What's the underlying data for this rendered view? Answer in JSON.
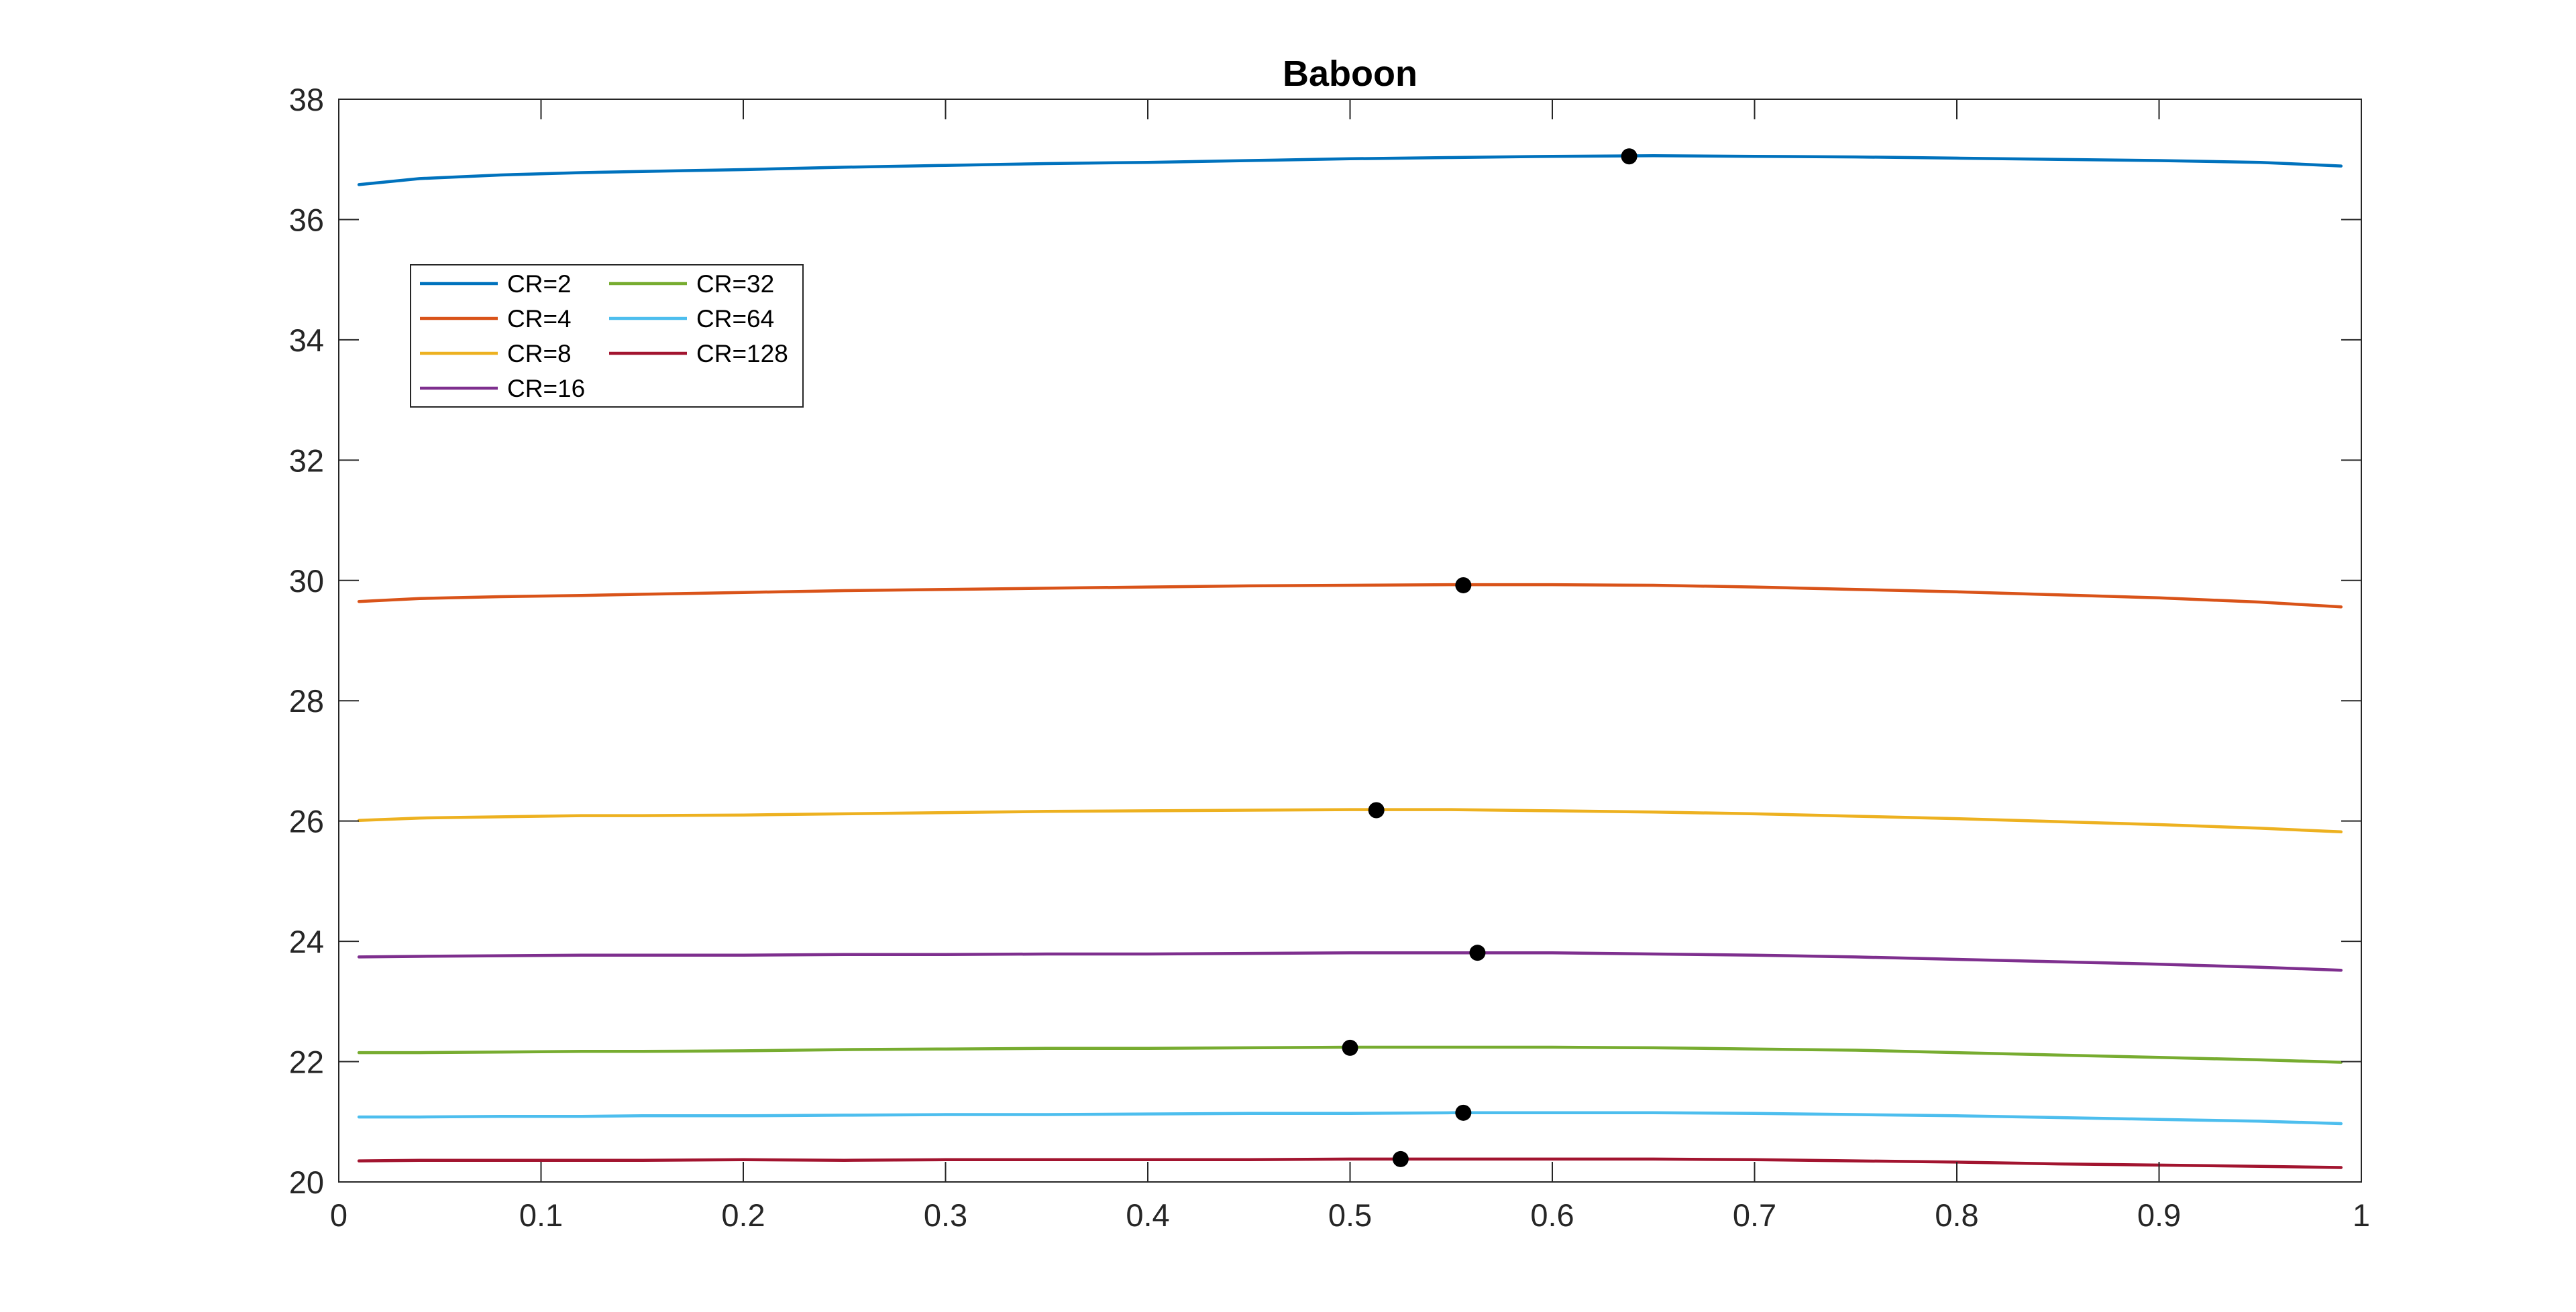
{
  "chart_data": {
    "type": "line",
    "title": "Baboon",
    "xlabel": "",
    "ylabel": "",
    "xlim": [
      0,
      1
    ],
    "ylim": [
      20,
      38
    ],
    "xticks": [
      "0",
      "0.1",
      "0.2",
      "0.3",
      "0.4",
      "0.5",
      "0.6",
      "0.7",
      "0.8",
      "0.9",
      "1"
    ],
    "yticks": [
      "20",
      "22",
      "24",
      "26",
      "28",
      "30",
      "32",
      "34",
      "36",
      "38"
    ],
    "grid": false,
    "legend_position": "upper-left",
    "legend_columns": 2,
    "x": [
      0.01,
      0.04,
      0.08,
      0.12,
      0.15,
      0.2,
      0.25,
      0.3,
      0.35,
      0.4,
      0.45,
      0.5,
      0.55,
      0.6,
      0.65,
      0.7,
      0.75,
      0.8,
      0.85,
      0.9,
      0.95,
      0.99
    ],
    "series": [
      {
        "name": "CR=2",
        "color": "#0072BD",
        "values": [
          36.58,
          36.68,
          36.74,
          36.78,
          36.8,
          36.83,
          36.87,
          36.9,
          36.93,
          36.95,
          36.98,
          37.01,
          37.03,
          37.05,
          37.06,
          37.05,
          37.04,
          37.02,
          37.0,
          36.98,
          36.95,
          36.89
        ],
        "marker": {
          "x": 0.638,
          "y": 37.05
        }
      },
      {
        "name": "CR=4",
        "color": "#D95319",
        "values": [
          29.65,
          29.7,
          29.73,
          29.75,
          29.77,
          29.8,
          29.83,
          29.85,
          29.87,
          29.89,
          29.91,
          29.92,
          29.93,
          29.93,
          29.92,
          29.89,
          29.85,
          29.81,
          29.76,
          29.71,
          29.64,
          29.56
        ],
        "marker": {
          "x": 0.556,
          "y": 29.92
        }
      },
      {
        "name": "CR=8",
        "color": "#EDB120",
        "values": [
          26.01,
          26.05,
          26.07,
          26.09,
          26.09,
          26.1,
          26.12,
          26.14,
          26.16,
          26.17,
          26.18,
          26.19,
          26.19,
          26.17,
          26.15,
          26.12,
          26.08,
          26.04,
          25.99,
          25.94,
          25.88,
          25.82
        ],
        "marker": {
          "x": 0.513,
          "y": 26.18
        }
      },
      {
        "name": "CR=16",
        "color": "#7E2F8E",
        "values": [
          23.74,
          23.75,
          23.76,
          23.77,
          23.77,
          23.77,
          23.78,
          23.78,
          23.79,
          23.79,
          23.8,
          23.81,
          23.81,
          23.81,
          23.79,
          23.77,
          23.74,
          23.7,
          23.66,
          23.62,
          23.57,
          23.52
        ],
        "marker": {
          "x": 0.563,
          "y": 23.81
        }
      },
      {
        "name": "CR=32",
        "color": "#77AC30",
        "values": [
          22.15,
          22.15,
          22.16,
          22.17,
          22.17,
          22.18,
          22.2,
          22.21,
          22.22,
          22.22,
          22.23,
          22.24,
          22.24,
          22.24,
          22.23,
          22.21,
          22.19,
          22.15,
          22.11,
          22.07,
          22.03,
          21.99
        ],
        "marker": {
          "x": 0.5,
          "y": 22.23
        }
      },
      {
        "name": "CR=64",
        "color": "#4DBEEE",
        "values": [
          21.08,
          21.08,
          21.09,
          21.09,
          21.1,
          21.1,
          21.11,
          21.12,
          21.12,
          21.13,
          21.14,
          21.14,
          21.15,
          21.15,
          21.15,
          21.14,
          21.12,
          21.1,
          21.07,
          21.04,
          21.01,
          20.97
        ],
        "marker": {
          "x": 0.556,
          "y": 21.15
        }
      },
      {
        "name": "CR=128",
        "color": "#A2142F",
        "values": [
          20.35,
          20.36,
          20.36,
          20.36,
          20.36,
          20.37,
          20.36,
          20.37,
          20.37,
          20.37,
          20.37,
          20.38,
          20.38,
          20.38,
          20.38,
          20.37,
          20.35,
          20.33,
          20.3,
          20.28,
          20.26,
          20.24
        ],
        "marker": {
          "x": 0.525,
          "y": 20.38
        }
      }
    ]
  }
}
